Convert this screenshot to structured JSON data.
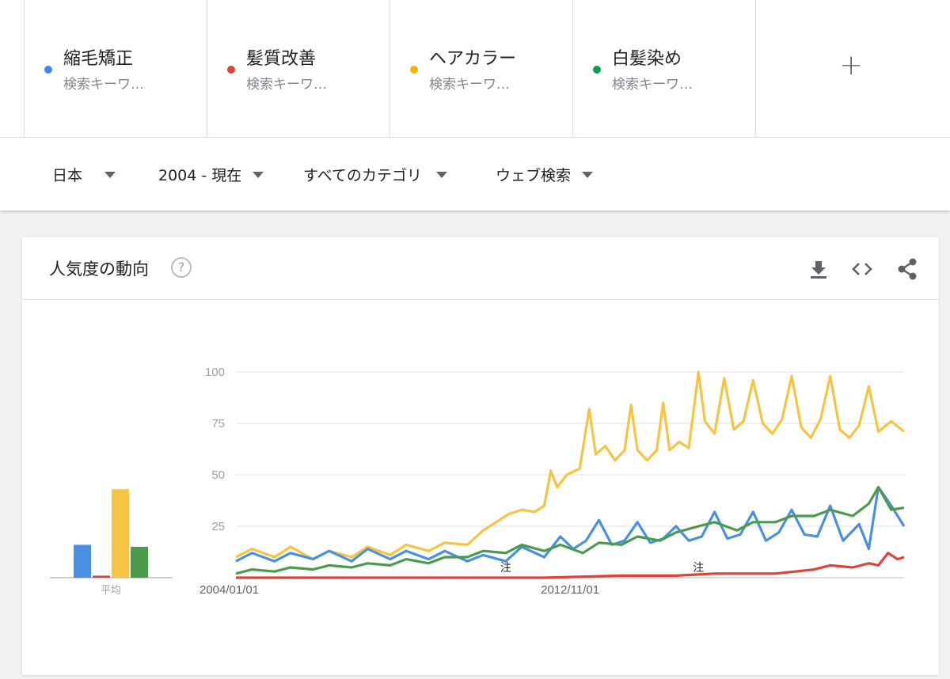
{
  "keywords": [
    {
      "term": "縮毛矯正",
      "subtitle": "検索キーワ…",
      "color": "#4285f4"
    },
    {
      "term": "髪質改善",
      "subtitle": "検索キーワ…",
      "color": "#db4437"
    },
    {
      "term": "ヘアカラー",
      "subtitle": "検索キーワ…",
      "color": "#f4b400"
    },
    {
      "term": "白髪染め",
      "subtitle": "検索キーワ…",
      "color": "#0f9d58"
    }
  ],
  "add_label": "+",
  "filters": {
    "region": "日本",
    "period": "2004 - 現在",
    "category": "すべてのカテゴリ",
    "search_type": "ウェブ検索"
  },
  "card": {
    "title": "人気度の動向",
    "help_glyph": "?",
    "icons": [
      "download-icon",
      "embed-code-icon",
      "share-icon"
    ]
  },
  "chart_data": {
    "type": "line",
    "x_start": "2004-01",
    "x_end": "2021-05",
    "ylim": [
      0,
      100
    ],
    "y_ticks": [
      100,
      75,
      50,
      25
    ],
    "x_tick_labels": [
      "2004/01/01",
      "2012/11/01"
    ],
    "average_label": "平均",
    "annotations": [
      {
        "label": "注",
        "x": "2011-01"
      },
      {
        "label": "注",
        "x": "2016-01"
      }
    ],
    "averages": [
      16,
      1,
      43,
      15
    ],
    "series": [
      {
        "name": "縮毛矯正",
        "color": "#4a90e2",
        "points": [
          [
            "2004-01",
            8
          ],
          [
            "2004-06",
            12
          ],
          [
            "2005-01",
            8
          ],
          [
            "2005-06",
            12
          ],
          [
            "2006-01",
            9
          ],
          [
            "2006-06",
            13
          ],
          [
            "2007-01",
            8
          ],
          [
            "2007-06",
            14
          ],
          [
            "2008-01",
            9
          ],
          [
            "2008-06",
            13
          ],
          [
            "2009-01",
            9
          ],
          [
            "2009-06",
            13
          ],
          [
            "2010-01",
            8
          ],
          [
            "2010-06",
            11
          ],
          [
            "2011-01",
            8
          ],
          [
            "2011-06",
            15
          ],
          [
            "2012-01",
            10
          ],
          [
            "2012-06",
            20
          ],
          [
            "2012-10",
            14
          ],
          [
            "2013-02",
            18
          ],
          [
            "2013-06",
            28
          ],
          [
            "2013-10",
            16
          ],
          [
            "2014-02",
            18
          ],
          [
            "2014-06",
            27
          ],
          [
            "2014-10",
            17
          ],
          [
            "2015-02",
            19
          ],
          [
            "2015-06",
            25
          ],
          [
            "2015-10",
            18
          ],
          [
            "2016-02",
            20
          ],
          [
            "2016-06",
            32
          ],
          [
            "2016-10",
            19
          ],
          [
            "2017-02",
            21
          ],
          [
            "2017-06",
            32
          ],
          [
            "2017-10",
            18
          ],
          [
            "2018-02",
            22
          ],
          [
            "2018-06",
            33
          ],
          [
            "2018-10",
            21
          ],
          [
            "2019-02",
            20
          ],
          [
            "2019-06",
            35
          ],
          [
            "2019-10",
            18
          ],
          [
            "2020-03",
            26
          ],
          [
            "2020-06",
            14
          ],
          [
            "2020-09",
            44
          ],
          [
            "2021-01",
            35
          ],
          [
            "2021-05",
            25
          ]
        ]
      },
      {
        "name": "髪質改善",
        "color": "#db4437",
        "points": [
          [
            "2004-01",
            0
          ],
          [
            "2011-01",
            0
          ],
          [
            "2012-01",
            0
          ],
          [
            "2014-01",
            1
          ],
          [
            "2015-06",
            1
          ],
          [
            "2016-06",
            2
          ],
          [
            "2018-01",
            2
          ],
          [
            "2019-01",
            4
          ],
          [
            "2019-06",
            6
          ],
          [
            "2020-01",
            5
          ],
          [
            "2020-06",
            7
          ],
          [
            "2020-09",
            6
          ],
          [
            "2020-12",
            12
          ],
          [
            "2021-03",
            9
          ],
          [
            "2021-05",
            10
          ]
        ]
      },
      {
        "name": "ヘアカラー",
        "color": "#f6c343",
        "points": [
          [
            "2004-01",
            10
          ],
          [
            "2004-06",
            14
          ],
          [
            "2005-01",
            10
          ],
          [
            "2005-06",
            15
          ],
          [
            "2006-01",
            9
          ],
          [
            "2006-06",
            13
          ],
          [
            "2007-01",
            10
          ],
          [
            "2007-06",
            15
          ],
          [
            "2008-01",
            11
          ],
          [
            "2008-06",
            16
          ],
          [
            "2009-01",
            13
          ],
          [
            "2009-06",
            17
          ],
          [
            "2010-01",
            16
          ],
          [
            "2010-06",
            23
          ],
          [
            "2010-10",
            27
          ],
          [
            "2011-02",
            31
          ],
          [
            "2011-06",
            33
          ],
          [
            "2011-10",
            32
          ],
          [
            "2012-01",
            35
          ],
          [
            "2012-03",
            52
          ],
          [
            "2012-05",
            44
          ],
          [
            "2012-08",
            50
          ],
          [
            "2012-12",
            53
          ],
          [
            "2013-03",
            82
          ],
          [
            "2013-05",
            60
          ],
          [
            "2013-08",
            64
          ],
          [
            "2013-11",
            57
          ],
          [
            "2014-02",
            62
          ],
          [
            "2014-04",
            84
          ],
          [
            "2014-06",
            62
          ],
          [
            "2014-09",
            57
          ],
          [
            "2014-12",
            62
          ],
          [
            "2015-02",
            85
          ],
          [
            "2015-04",
            62
          ],
          [
            "2015-07",
            66
          ],
          [
            "2015-10",
            63
          ],
          [
            "2016-01",
            100
          ],
          [
            "2016-03",
            76
          ],
          [
            "2016-06",
            70
          ],
          [
            "2016-09",
            97
          ],
          [
            "2016-12",
            72
          ],
          [
            "2017-03",
            76
          ],
          [
            "2017-06",
            96
          ],
          [
            "2017-09",
            75
          ],
          [
            "2017-12",
            70
          ],
          [
            "2018-03",
            77
          ],
          [
            "2018-06",
            98
          ],
          [
            "2018-09",
            73
          ],
          [
            "2018-12",
            68
          ],
          [
            "2019-03",
            77
          ],
          [
            "2019-06",
            98
          ],
          [
            "2019-09",
            72
          ],
          [
            "2019-12",
            68
          ],
          [
            "2020-03",
            74
          ],
          [
            "2020-06",
            93
          ],
          [
            "2020-09",
            71
          ],
          [
            "2021-01",
            76
          ],
          [
            "2021-05",
            71
          ]
        ]
      },
      {
        "name": "白髪染め",
        "color": "#4c9a4c",
        "points": [
          [
            "2004-01",
            2
          ],
          [
            "2004-06",
            4
          ],
          [
            "2005-01",
            3
          ],
          [
            "2005-06",
            5
          ],
          [
            "2006-01",
            4
          ],
          [
            "2006-06",
            6
          ],
          [
            "2007-01",
            5
          ],
          [
            "2007-06",
            7
          ],
          [
            "2008-01",
            6
          ],
          [
            "2008-06",
            9
          ],
          [
            "2009-01",
            7
          ],
          [
            "2009-06",
            10
          ],
          [
            "2010-01",
            10
          ],
          [
            "2010-06",
            13
          ],
          [
            "2011-01",
            12
          ],
          [
            "2011-06",
            16
          ],
          [
            "2012-01",
            13
          ],
          [
            "2012-06",
            16
          ],
          [
            "2013-01",
            12
          ],
          [
            "2013-06",
            17
          ],
          [
            "2014-01",
            16
          ],
          [
            "2014-06",
            20
          ],
          [
            "2015-01",
            18
          ],
          [
            "2015-06",
            22
          ],
          [
            "2016-01",
            25
          ],
          [
            "2016-06",
            27
          ],
          [
            "2017-01",
            23
          ],
          [
            "2017-06",
            27
          ],
          [
            "2018-01",
            27
          ],
          [
            "2018-06",
            30
          ],
          [
            "2019-01",
            30
          ],
          [
            "2019-06",
            33
          ],
          [
            "2020-01",
            30
          ],
          [
            "2020-06",
            36
          ],
          [
            "2020-09",
            44
          ],
          [
            "2021-01",
            33
          ],
          [
            "2021-05",
            34
          ]
        ]
      }
    ]
  }
}
